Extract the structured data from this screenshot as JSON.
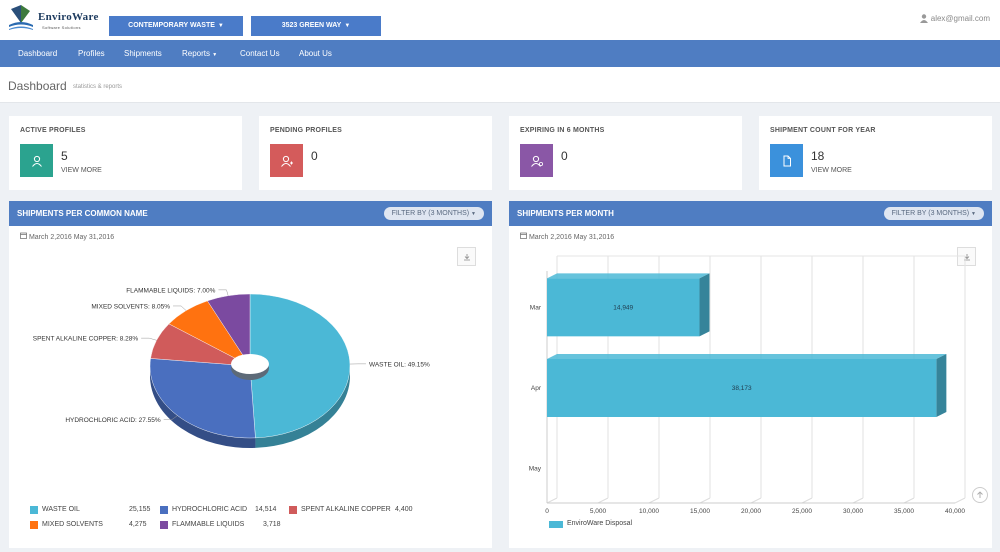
{
  "brand": {
    "name": "EnviroWare",
    "tagline": "Software Solutions"
  },
  "selectors": {
    "company": "CONTEMPORARY WASTE",
    "site": "3523 GREEN WAY"
  },
  "user": {
    "email": "alex@gmail.com"
  },
  "nav": {
    "items": [
      "Dashboard",
      "Profiles",
      "Shipments",
      "Reports",
      "Contact Us",
      "About Us"
    ]
  },
  "page": {
    "title": "Dashboard",
    "subtitle": "statistics & reports"
  },
  "stats": [
    {
      "title": "ACTIVE PROFILES",
      "value": "5",
      "link": "VIEW MORE",
      "color": "#2ba38f",
      "icon": "user-icon"
    },
    {
      "title": "PENDING PROFILES",
      "value": "0",
      "link": "",
      "color": "#d45b5b",
      "icon": "user-add-icon"
    },
    {
      "title": "EXPIRING IN 6 MONTHS",
      "value": "0",
      "link": "",
      "color": "#8a57a6",
      "icon": "user-clock-icon"
    },
    {
      "title": "SHIPMENT COUNT FOR YEAR",
      "value": "18",
      "link": "VIEW MORE",
      "color": "#3b91dc",
      "icon": "file-icon"
    }
  ],
  "panels": {
    "common": {
      "title": "SHIPMENTS PER COMMON NAME",
      "filter": "FILTER BY (3 MONTHS)",
      "daterange": "March 2,2016 May 31,2016"
    },
    "monthly": {
      "title": "SHIPMENTS PER MONTH",
      "filter": "FILTER BY (3 MONTHS)",
      "daterange": "March 2,2016 May 31,2016"
    }
  },
  "chart_data": [
    {
      "type": "pie",
      "slices": [
        {
          "name": "WASTE OIL",
          "label": "WASTE OIL: 49.15%",
          "percent": 49.15,
          "value": "25,155",
          "color": "#4bb8d6"
        },
        {
          "name": "HYDROCHLORIC ACID",
          "label": "HYDROCHLORIC ACID: 27.55%",
          "percent": 27.55,
          "value": "14,514",
          "color": "#4a6fbf"
        },
        {
          "name": "SPENT ALKALINE COPPER",
          "label": "SPENT ALKALINE COPPER: 8.28%",
          "percent": 8.28,
          "value": "4,400",
          "color": "#d05b5b"
        },
        {
          "name": "MIXED SOLVENTS",
          "label": "MIXED SOLVENTS: 8.05%",
          "percent": 8.05,
          "value": "4,275",
          "color": "#ff7210"
        },
        {
          "name": "FLAMMABLE LIQUIDS",
          "label": "FLAMMABLE LIQUIDS: 7.00%",
          "percent": 7.0,
          "value": "3,718",
          "color": "#7b4aa0"
        }
      ]
    },
    {
      "type": "bar",
      "orientation": "horizontal",
      "categories": [
        "Mar",
        "Apr",
        "May"
      ],
      "series": [
        {
          "name": "EnviroWare Disposal",
          "values": [
            14949,
            38173,
            0
          ],
          "labels": [
            "14,949",
            "38,173",
            ""
          ],
          "color": "#4bb8d6"
        }
      ],
      "xlim": [
        0,
        40000
      ],
      "xticks": [
        "0",
        "5,000",
        "10,000",
        "15,000",
        "20,000",
        "25,000",
        "30,000",
        "35,000",
        "40,000"
      ],
      "grid": true,
      "legend": "bottom-left"
    }
  ]
}
